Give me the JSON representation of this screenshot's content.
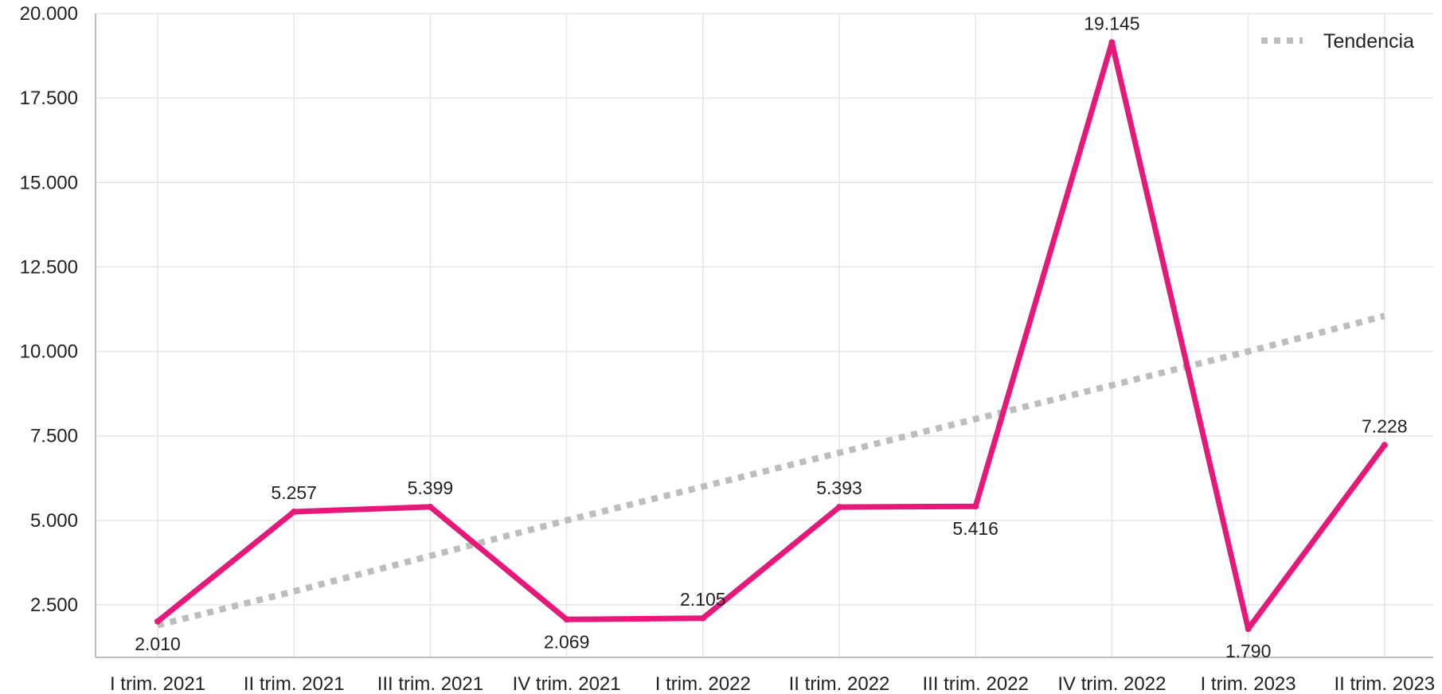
{
  "chart_data": {
    "type": "line",
    "categories": [
      "I trim. 2021",
      "II trim. 2021",
      "III trim. 2021",
      "IV trim. 2021",
      "I trim. 2022",
      "II trim. 2022",
      "III trim. 2022",
      "IV trim. 2022",
      "I trim. 2023",
      "II trim. 2023"
    ],
    "series": [
      {
        "name": "",
        "values": [
          2010,
          5257,
          5399,
          2069,
          2105,
          5393,
          5416,
          19145,
          1790,
          7228
        ],
        "labels": [
          "2.010",
          "5.257",
          "5.399",
          "2.069",
          "2.105",
          "5.393",
          "5.416",
          "19.145",
          "1.790",
          "7.228"
        ],
        "color": "#E6197A"
      },
      {
        "name": "Tendencia",
        "style": "dotted",
        "values": [
          1900,
          2900,
          3950,
          5000,
          6000,
          7000,
          8000,
          9000,
          10000,
          11050
        ],
        "color": "#BDBDBD"
      }
    ],
    "yticks": [
      "2.500",
      "5.000",
      "7.500",
      "10.000",
      "12.500",
      "15.000",
      "17.500",
      "20.000"
    ],
    "ytick_values": [
      2500,
      5000,
      7500,
      10000,
      12500,
      15000,
      17500,
      20000
    ],
    "ylim": [
      900,
      20000
    ],
    "grid": true,
    "legend_position": "top-right",
    "title": "",
    "xlabel": "",
    "ylabel": ""
  }
}
